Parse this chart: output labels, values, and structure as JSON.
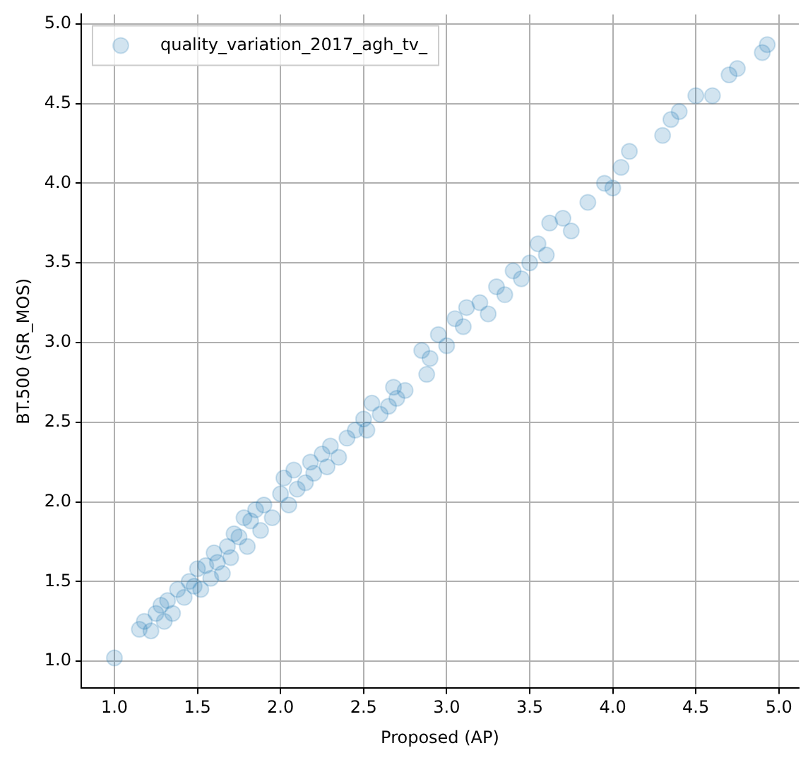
{
  "chart_data": {
    "type": "scatter",
    "xlabel": "Proposed (AP)",
    "ylabel": "BT.500 (SR_MOS)",
    "xlim": [
      0.8,
      5.12
    ],
    "ylim": [
      0.83,
      5.06
    ],
    "xticks": [
      {
        "value": 1,
        "label": "1.0"
      },
      1.5,
      {
        "value": 2,
        "label": "2.0"
      },
      2.5,
      {
        "value": 3,
        "label": "3.0"
      },
      3.5,
      {
        "value": 4,
        "label": "4.0"
      },
      4.5,
      {
        "value": 5,
        "label": "5.0"
      }
    ],
    "yticks": [
      {
        "value": 1,
        "label": "1.0"
      },
      1.5,
      {
        "value": 2,
        "label": "2.0"
      },
      2.5,
      {
        "value": 3,
        "label": "3.0"
      },
      3.5,
      {
        "value": 4,
        "label": "4.0"
      },
      4.5,
      {
        "value": 5,
        "label": "5.0"
      }
    ],
    "grid": true,
    "legend": "top left",
    "marker": "circle",
    "series": [
      {
        "name": "quality_variation_2017_agh_tv_",
        "color": "#1f77b4",
        "x": [
          1.0,
          1.15,
          1.18,
          1.22,
          1.25,
          1.28,
          1.3,
          1.32,
          1.35,
          1.38,
          1.42,
          1.45,
          1.48,
          1.5,
          1.52,
          1.55,
          1.58,
          1.6,
          1.62,
          1.65,
          1.68,
          1.7,
          1.72,
          1.75,
          1.78,
          1.8,
          1.82,
          1.85,
          1.88,
          1.9,
          1.95,
          2.0,
          2.02,
          2.05,
          2.08,
          2.1,
          2.15,
          2.18,
          2.2,
          2.25,
          2.28,
          2.3,
          2.35,
          2.4,
          2.45,
          2.5,
          2.52,
          2.55,
          2.6,
          2.65,
          2.68,
          2.7,
          2.75,
          2.85,
          2.88,
          2.9,
          2.95,
          3.0,
          3.05,
          3.1,
          3.12,
          3.2,
          3.25,
          3.3,
          3.35,
          3.4,
          3.45,
          3.5,
          3.55,
          3.6,
          3.62,
          3.7,
          3.75,
          3.85,
          3.95,
          4.0,
          4.05,
          4.1,
          4.3,
          4.35,
          4.4,
          4.5,
          4.6,
          4.7,
          4.75,
          4.9,
          4.93
        ],
        "values": [
          1.02,
          1.2,
          1.25,
          1.19,
          1.3,
          1.35,
          1.25,
          1.38,
          1.3,
          1.45,
          1.4,
          1.5,
          1.47,
          1.58,
          1.45,
          1.6,
          1.52,
          1.68,
          1.62,
          1.55,
          1.72,
          1.65,
          1.8,
          1.78,
          1.9,
          1.72,
          1.88,
          1.95,
          1.82,
          1.98,
          1.9,
          2.05,
          2.15,
          1.98,
          2.2,
          2.08,
          2.12,
          2.25,
          2.18,
          2.3,
          2.22,
          2.35,
          2.28,
          2.4,
          2.45,
          2.52,
          2.45,
          2.62,
          2.55,
          2.6,
          2.72,
          2.65,
          2.7,
          2.95,
          2.8,
          2.9,
          3.05,
          2.98,
          3.15,
          3.1,
          3.22,
          3.25,
          3.18,
          3.35,
          3.3,
          3.45,
          3.4,
          3.5,
          3.62,
          3.55,
          3.75,
          3.78,
          3.7,
          3.88,
          4.0,
          3.97,
          4.1,
          4.2,
          4.3,
          4.4,
          4.45,
          4.55,
          4.55,
          4.68,
          4.72,
          4.82,
          4.87
        ]
      }
    ]
  }
}
